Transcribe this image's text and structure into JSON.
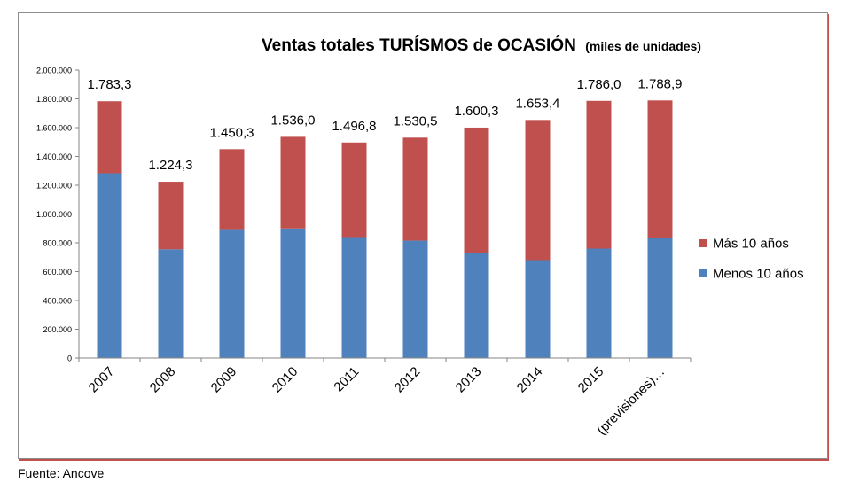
{
  "chart_data": {
    "type": "bar",
    "stacked": true,
    "title_main": "Ventas totales TURÍSMOS de OCASIÓN",
    "title_sub": "(miles de unidades)",
    "categories": [
      "2007",
      "2008",
      "2009",
      "2010",
      "2011",
      "2012",
      "2013",
      "2014",
      "2015",
      "(previsiones)…"
    ],
    "series": [
      {
        "name": "Menos 10 años",
        "color": "#4f81bd",
        "values": [
          1283,
          755,
          895,
          900,
          840,
          815,
          730,
          680,
          760,
          835
        ]
      },
      {
        "name": "Más 10 años",
        "color": "#c0504d",
        "values": [
          500.3,
          469.3,
          555.3,
          636.0,
          656.8,
          715.5,
          870.3,
          973.4,
          1026.0,
          953.9
        ]
      }
    ],
    "totals_labels": [
      "1.783,3",
      "1.224,3",
      "1.450,3",
      "1.536,0",
      "1.496,8",
      "1.530,5",
      "1.600,3",
      "1.653,4",
      "1.786,0",
      "1.788,9"
    ],
    "y_ticks": [
      "0",
      "200.000",
      "400.000",
      "600.000",
      "800.000",
      "1.000.000",
      "1.200.000",
      "1.400.000",
      "1.600.000",
      "1.800.000",
      "2.000.000"
    ],
    "ylim": [
      0,
      2000
    ],
    "legend_order": [
      "Más 10 años",
      "Menos 10 años"
    ],
    "legend_position": "right",
    "grid": false
  },
  "footer": {
    "source": "Fuente: Ancove"
  }
}
